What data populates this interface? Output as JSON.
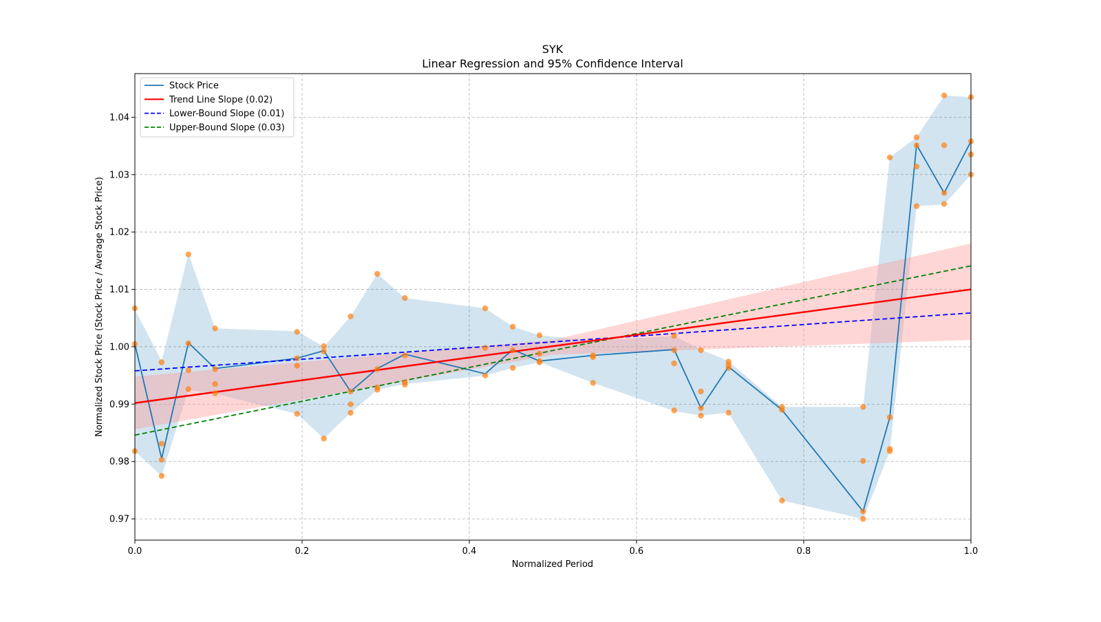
{
  "chart_data": {
    "type": "line",
    "title": "SYK",
    "subtitle": "Linear Regression and 95% Confidence Interval",
    "xlabel": "Normalized Period",
    "ylabel": "Normalized Stock Price (Stock Price / Average Stock Price)",
    "xlim": [
      0,
      1
    ],
    "ylim": [
      0.9663,
      1.0476
    ],
    "xticks": [
      0.0,
      0.2,
      0.4,
      0.6,
      0.8,
      1.0
    ],
    "xtick_labels": [
      "0.0",
      "0.2",
      "0.4",
      "0.6",
      "0.8",
      "1.0"
    ],
    "yticks": [
      0.97,
      0.98,
      0.99,
      1.0,
      1.01,
      1.02,
      1.03,
      1.04
    ],
    "ytick_labels": [
      "0.97",
      "0.98",
      "0.99",
      "1.00",
      "1.01",
      "1.02",
      "1.03",
      "1.04"
    ],
    "grid": true,
    "legend_position": "top-left",
    "colors": {
      "stock": "#1f77b4",
      "stock_band": "#1f77b4",
      "points": "#ff7f0e",
      "trend": "#ff0000",
      "trend_band": "#ff9999",
      "lower": "#0000ff",
      "upper": "#008000",
      "grid": "#b0b0b0"
    },
    "legend": [
      {
        "label": "Stock Price",
        "style": "stock"
      },
      {
        "label": "Trend Line Slope (0.02)",
        "style": "trend"
      },
      {
        "label": "Lower-Bound Slope (0.01)",
        "style": "lower"
      },
      {
        "label": "Upper-Bound Slope (0.03)",
        "style": "upper"
      }
    ],
    "stock_series": {
      "x": [
        0.0,
        0.032,
        0.064,
        0.096,
        0.194,
        0.226,
        0.258,
        0.29,
        0.323,
        0.419,
        0.452,
        0.484,
        0.548,
        0.645,
        0.677,
        0.71,
        0.774,
        0.871,
        0.903,
        0.935,
        0.968,
        1.0
      ],
      "y": [
        1.0005,
        0.9805,
        1.0007,
        0.9962,
        0.998,
        0.9993,
        0.9922,
        0.9962,
        0.9987,
        0.9953,
        0.9995,
        0.9975,
        0.9985,
        0.9995,
        0.9893,
        0.9965,
        0.989,
        0.9713,
        0.9877,
        1.0352,
        1.0268,
        1.0358
      ]
    },
    "stock_band": {
      "x": [
        0.0,
        0.032,
        0.064,
        0.096,
        0.194,
        0.226,
        0.258,
        0.29,
        0.323,
        0.419,
        0.452,
        0.484,
        0.548,
        0.645,
        0.677,
        0.71,
        0.774,
        0.871,
        0.903,
        0.935,
        0.968,
        1.0
      ],
      "upper": [
        1.0065,
        0.9975,
        1.0162,
        1.0032,
        1.0027,
        1.0,
        1.0053,
        1.0127,
        1.0085,
        1.0067,
        1.0035,
        1.002,
        1.001,
        1.0019,
        0.9995,
        0.9975,
        0.9895,
        0.9895,
        1.033,
        1.0365,
        1.0438,
        1.0435
      ],
      "lower": [
        0.9818,
        0.9775,
        0.9925,
        0.9918,
        0.9883,
        0.984,
        0.9885,
        0.9925,
        0.9935,
        0.995,
        0.9963,
        0.9973,
        0.9937,
        0.9888,
        0.988,
        0.9885,
        0.9732,
        0.97,
        0.9818,
        1.0245,
        1.0248,
        1.03
      ]
    },
    "scatter_points": {
      "x": [
        0.0,
        0.0,
        0.0,
        0.032,
        0.032,
        0.032,
        0.032,
        0.064,
        0.064,
        0.064,
        0.064,
        0.096,
        0.096,
        0.096,
        0.096,
        0.194,
        0.194,
        0.194,
        0.194,
        0.226,
        0.226,
        0.226,
        0.258,
        0.258,
        0.258,
        0.258,
        0.29,
        0.29,
        0.29,
        0.29,
        0.323,
        0.323,
        0.323,
        0.323,
        0.419,
        0.419,
        0.419,
        0.452,
        0.452,
        0.452,
        0.484,
        0.484,
        0.484,
        0.484,
        0.548,
        0.548,
        0.548,
        0.645,
        0.645,
        0.645,
        0.645,
        0.677,
        0.677,
        0.677,
        0.677,
        0.71,
        0.71,
        0.71,
        0.71,
        0.774,
        0.774,
        0.774,
        0.871,
        0.871,
        0.871,
        0.871,
        0.903,
        0.903,
        0.903,
        0.903,
        0.935,
        0.935,
        0.935,
        0.935,
        0.968,
        0.968,
        0.968,
        0.968,
        1.0,
        1.0,
        1.0,
        1.0
      ],
      "y": [
        1.0067,
        1.0005,
        0.9818,
        0.9973,
        0.9831,
        0.9803,
        0.9775,
        1.0161,
        1.0006,
        0.9959,
        0.9926,
        1.0032,
        0.9961,
        0.9935,
        0.9919,
        1.0026,
        0.998,
        0.9967,
        0.9883,
        1.0001,
        0.9992,
        0.984,
        1.0053,
        0.9922,
        0.99,
        0.9885,
        1.0127,
        0.9961,
        0.9929,
        0.9925,
        1.0085,
        0.9985,
        0.9938,
        0.9934,
        1.0067,
        0.9998,
        0.995,
        1.0035,
        0.9994,
        0.9963,
        1.002,
        0.9988,
        0.9975,
        0.9973,
        0.9985,
        0.9982,
        0.9937,
        1.0019,
        0.9994,
        0.9971,
        0.9889,
        0.9994,
        0.9922,
        0.9893,
        0.988,
        0.9974,
        0.9968,
        0.9963,
        0.9885,
        0.9895,
        0.989,
        0.9732,
        0.9895,
        0.9801,
        0.9713,
        0.97,
        0.9877,
        0.9822,
        0.9818,
        1.033,
        1.0365,
        1.0351,
        1.0314,
        1.0245,
        1.0438,
        1.0351,
        1.0268,
        1.0249,
        1.0435,
        1.0358,
        1.0335,
        1.03
      ]
    },
    "trend_line": {
      "x": [
        0,
        1
      ],
      "y": [
        0.9902,
        1.01
      ]
    },
    "trend_band": {
      "x": [
        0,
        0.5,
        1
      ],
      "upper": [
        0.9948,
        1.0012,
        1.018
      ],
      "lower": [
        0.9856,
        0.9986,
        1.0012
      ]
    },
    "lower_bound_line": {
      "x": [
        0,
        1
      ],
      "y": [
        0.9958,
        1.0059
      ]
    },
    "upper_bound_line": {
      "x": [
        0,
        1
      ],
      "y": [
        0.9846,
        1.0141
      ]
    }
  }
}
